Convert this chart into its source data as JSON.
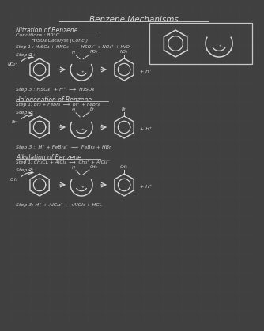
{
  "bg_color": "#404040",
  "grid_color": "#4a4a4a",
  "text_color": "#d8d8d8",
  "line_color": "#c8c8c8",
  "title": "Benzene Mechanisms",
  "title_fontsize": 7.5,
  "section_fontsize": 5.5,
  "body_fontsize": 4.5,
  "small_fontsize": 3.8,
  "nitration": {
    "heading": "Nitration of Benzene",
    "cond1": "Conditions : 80°C",
    "cond2": "          H₂SO₄ Catalyst (Conc.)",
    "step1": "Step 1 : H₂SO₄ + HNO₃  ⟶  HSO₄⁻ + NO₂⁺ + H₂O",
    "step2_label": "Step 2 :",
    "step2_diag1_label": "NO₂⁺",
    "step2_diag2_label1": "H",
    "step2_diag2_label2": "NO₂",
    "step2_diag3_label": "NO₂",
    "step3": "Step 3 : HSO₄⁻ + H⁺  ⟶  H₂SO₄"
  },
  "halogenation": {
    "heading": "Halogenation of Benzene",
    "step1": "Step 1: Br₂ + FeBr₃  ⟶  Br⁺ + FeBr₄⁻",
    "step2_label": "Step 2:",
    "step2_diag1_label": "Br⁺",
    "step2_diag2_label1": "H",
    "step2_diag2_label2": "Br",
    "step2_diag3_label": "Br",
    "step3": "Step 3 :  H⁺ + FeBr₄⁻  ⟶  FeBr₃ + HBr"
  },
  "alkylation": {
    "heading": "Alkylation of Benzene",
    "step1": "Step 1: CH₃CL + AlCl₃  ⟶  CH₃⁺ + AlCl₄⁻",
    "step2_label": "Step 2:",
    "step2_diag1_label": "CH₃",
    "step2_diag2_label1": "H",
    "step2_diag2_label2": "CH₃",
    "step2_diag3_label": "CH₃",
    "step3": "Step 3: H⁺ + AlCl₄⁻  ⟶AlCl₃ + HCL"
  }
}
